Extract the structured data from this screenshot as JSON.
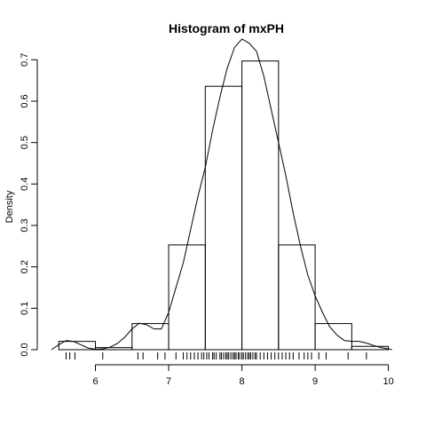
{
  "chart_data": {
    "type": "histogram",
    "title": "Histogram of  mxPH",
    "xlabel": "",
    "ylabel": "Density",
    "xlim": [
      5.4,
      10.15
    ],
    "ylim": [
      0,
      0.72
    ],
    "x_ticks": [
      "6",
      "7",
      "8",
      "9",
      "10"
    ],
    "y_ticks": [
      "0.0",
      "0.1",
      "0.2",
      "0.3",
      "0.4",
      "0.5",
      "0.6",
      "0.7"
    ],
    "bins": [
      {
        "from": 5.5,
        "to": 6.0,
        "density": 0.02
      },
      {
        "from": 6.0,
        "to": 6.5,
        "density": 0.005
      },
      {
        "from": 6.5,
        "to": 7.0,
        "density": 0.063
      },
      {
        "from": 7.0,
        "to": 7.5,
        "density": 0.253
      },
      {
        "from": 7.5,
        "to": 8.0,
        "density": 0.636
      },
      {
        "from": 8.0,
        "to": 8.5,
        "density": 0.697
      },
      {
        "from": 8.5,
        "to": 9.0,
        "density": 0.253
      },
      {
        "from": 9.0,
        "to": 9.5,
        "density": 0.063
      },
      {
        "from": 9.5,
        "to": 10.0,
        "density": 0.008
      }
    ],
    "density_curve": {
      "x": [
        5.4,
        5.5,
        5.6,
        5.7,
        5.8,
        5.9,
        6.0,
        6.1,
        6.2,
        6.3,
        6.4,
        6.5,
        6.6,
        6.7,
        6.8,
        6.9,
        7.0,
        7.1,
        7.2,
        7.3,
        7.4,
        7.5,
        7.6,
        7.7,
        7.8,
        7.9,
        8.0,
        8.1,
        8.2,
        8.3,
        8.4,
        8.5,
        8.6,
        8.7,
        8.8,
        8.9,
        9.0,
        9.1,
        9.2,
        9.3,
        9.4,
        9.5,
        9.6,
        9.7,
        9.8,
        9.9,
        10.0,
        10.05
      ],
      "y": [
        0.0,
        0.012,
        0.022,
        0.02,
        0.012,
        0.004,
        0.001,
        0.002,
        0.006,
        0.015,
        0.03,
        0.05,
        0.064,
        0.06,
        0.05,
        0.05,
        0.09,
        0.15,
        0.21,
        0.29,
        0.37,
        0.44,
        0.53,
        0.61,
        0.68,
        0.73,
        0.75,
        0.74,
        0.72,
        0.66,
        0.58,
        0.5,
        0.42,
        0.33,
        0.25,
        0.18,
        0.13,
        0.09,
        0.055,
        0.035,
        0.022,
        0.02,
        0.02,
        0.016,
        0.01,
        0.005,
        0.002,
        0.0
      ]
    },
    "rug": [
      5.6,
      5.65,
      5.72,
      6.1,
      6.58,
      6.65,
      6.85,
      6.95,
      7.1,
      7.2,
      7.25,
      7.3,
      7.35,
      7.4,
      7.45,
      7.48,
      7.52,
      7.55,
      7.6,
      7.62,
      7.65,
      7.7,
      7.72,
      7.75,
      7.78,
      7.8,
      7.82,
      7.85,
      7.88,
      7.9,
      7.92,
      7.95,
      7.97,
      8.0,
      8.02,
      8.05,
      8.08,
      8.1,
      8.12,
      8.15,
      8.18,
      8.2,
      8.25,
      8.3,
      8.35,
      8.4,
      8.45,
      8.5,
      8.55,
      8.6,
      8.65,
      8.7,
      8.78,
      8.85,
      8.9,
      8.95,
      9.05,
      9.15,
      9.45,
      9.7
    ],
    "grid": false
  }
}
